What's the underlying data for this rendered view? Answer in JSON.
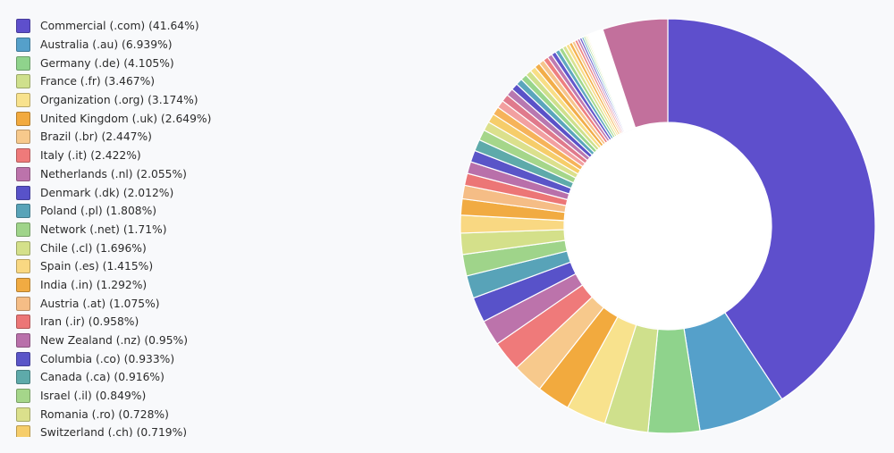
{
  "chart_data": {
    "type": "pie",
    "variant": "donut",
    "legend_position": "left",
    "slices": [
      {
        "label": "Commercial (.com) (41.64%)",
        "value": 41.64,
        "color": "#5e4fcc"
      },
      {
        "label": "Australia (.au) (6.939%)",
        "value": 6.939,
        "color": "#55a0ca"
      },
      {
        "label": "Germany (.de) (4.105%)",
        "value": 4.105,
        "color": "#8fd38c"
      },
      {
        "label": "France (.fr) (3.467%)",
        "value": 3.467,
        "color": "#cfe08c"
      },
      {
        "label": "Organization (.org) (3.174%)",
        "value": 3.174,
        "color": "#f8e28d"
      },
      {
        "label": "United Kingdom (.uk) (2.649%)",
        "value": 2.649,
        "color": "#f2aa3e"
      },
      {
        "label": "Brazil (.br) (2.447%)",
        "value": 2.447,
        "color": "#f7c98c"
      },
      {
        "label": "Italy (.it) (2.422%)",
        "value": 2.422,
        "color": "#ef7a7a"
      },
      {
        "label": "Netherlands (.nl) (2.055%)",
        "value": 2.055,
        "color": "#bc73ab"
      },
      {
        "label": "Denmark (.dk) (2.012%)",
        "value": 2.012,
        "color": "#5852c9"
      },
      {
        "label": "Poland (.pl) (1.808%)",
        "value": 1.808,
        "color": "#58a3b8"
      },
      {
        "label": "Network (.net) (1.71%)",
        "value": 1.71,
        "color": "#9fd48a"
      },
      {
        "label": "Chile (.cl) (1.696%)",
        "value": 1.696,
        "color": "#d4e08a"
      },
      {
        "label": "Spain (.es) (1.415%)",
        "value": 1.415,
        "color": "#f9d882"
      },
      {
        "label": "India (.in) (1.292%)",
        "value": 1.292,
        "color": "#f1ab42"
      },
      {
        "label": "Austria (.at) (1.075%)",
        "value": 1.075,
        "color": "#f5bd86"
      },
      {
        "label": "Iran (.ir) (0.958%)",
        "value": 0.958,
        "color": "#ec7676"
      },
      {
        "label": "New Zealand (.nz) (0.95%)",
        "value": 0.95,
        "color": "#b970aa"
      },
      {
        "label": "Columbia (.co) (0.933%)",
        "value": 0.933,
        "color": "#5a55c8"
      },
      {
        "label": "Canada (.ca) (0.916%)",
        "value": 0.916,
        "color": "#5eaaaa"
      },
      {
        "label": "Israel (.il) (0.849%)",
        "value": 0.849,
        "color": "#a5d68a"
      },
      {
        "label": "Romania (.ro) (0.728%)",
        "value": 0.728,
        "color": "#dbe08c"
      },
      {
        "label": "Switzerland (.ch) (0.719%)",
        "value": 0.719,
        "color": "#f6cd6a"
      }
    ],
    "unlabeled_slices": [
      {
        "value": 0.65,
        "color": "#f6b35a"
      },
      {
        "value": 0.62,
        "color": "#f2a0a0"
      },
      {
        "value": 0.6,
        "color": "#e07a8c"
      },
      {
        "value": 0.58,
        "color": "#b878b0"
      },
      {
        "value": 0.55,
        "color": "#5a52c8"
      },
      {
        "value": 0.52,
        "color": "#5aa6bc"
      },
      {
        "value": 0.5,
        "color": "#98d58c"
      },
      {
        "value": 0.48,
        "color": "#cfe08c"
      },
      {
        "value": 0.46,
        "color": "#f8de86"
      },
      {
        "value": 0.44,
        "color": "#f2ae4a"
      },
      {
        "value": 0.42,
        "color": "#f6c48c"
      },
      {
        "value": 0.4,
        "color": "#ee8080"
      },
      {
        "value": 0.38,
        "color": "#c07ab0"
      },
      {
        "value": 0.36,
        "color": "#6258cc"
      },
      {
        "value": 0.34,
        "color": "#60a8c0"
      },
      {
        "value": 0.32,
        "color": "#a2d88c"
      },
      {
        "value": 0.3,
        "color": "#d8e290"
      },
      {
        "value": 0.28,
        "color": "#f9dd8a"
      },
      {
        "value": 0.26,
        "color": "#f4b250"
      },
      {
        "value": 0.24,
        "color": "#f6c890"
      },
      {
        "value": 0.22,
        "color": "#ef8686"
      },
      {
        "value": 0.2,
        "color": "#c080b4"
      },
      {
        "value": 0.18,
        "color": "#6a60cf"
      },
      {
        "value": 0.16,
        "color": "#66acc4"
      },
      {
        "value": 0.14,
        "color": "#a8da90"
      },
      {
        "value": 0.12,
        "color": "#dce494"
      },
      {
        "value": 0.1,
        "color": "#f9e090"
      },
      {
        "value": 0.09,
        "color": "#f4b658"
      },
      {
        "value": 0.08,
        "color": "#f7cc94"
      },
      {
        "value": 0.07,
        "color": "#f08c8c"
      },
      {
        "value": 0.06,
        "color": "#c486b8"
      },
      {
        "value": 0.05,
        "color": "#7068d2"
      },
      {
        "value": 0.05,
        "color": "#6cb0c8"
      },
      {
        "value": 0.04,
        "color": "#b0dc94"
      },
      {
        "value": 0.04,
        "color": "#e0e698"
      },
      {
        "value": 0.78,
        "color": "#ffffff"
      },
      {
        "value": 5.2,
        "color": "#c2709c"
      }
    ]
  }
}
